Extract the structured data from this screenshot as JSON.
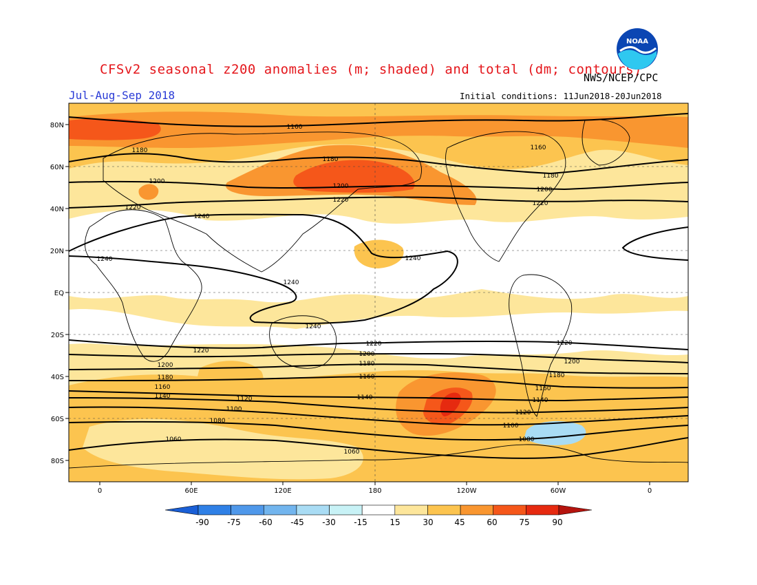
{
  "title": "CFSv2 seasonal z200 anomalies (m; shaded) and total (dm; contours)",
  "organization": "NWS/NCEP/CPC",
  "period": "Jul-Aug-Sep 2018",
  "initial_conditions": "Initial conditions: 11Jun2018-20Jun2018",
  "logo_text": "NOAA",
  "lat_labels": [
    "80N",
    "60N",
    "40N",
    "20N",
    "EQ",
    "20S",
    "40S",
    "60S",
    "80S"
  ],
  "lon_labels": [
    "0",
    "60E",
    "120E",
    "180",
    "120W",
    "60W",
    "0"
  ],
  "colorbar": {
    "ticks": [
      "-90",
      "-75",
      "-60",
      "-45",
      "-30",
      "-15",
      "15",
      "30",
      "45",
      "60",
      "75",
      "90"
    ],
    "colors": [
      "#1a5fd6",
      "#2f80e6",
      "#4f98ea",
      "#72b5ee",
      "#a9dcf4",
      "#c8f2f6",
      "#ffffff",
      "#fde69b",
      "#fcc44f",
      "#f99630",
      "#f5571a",
      "#e62a10",
      "#b5140e"
    ]
  },
  "contour_labels": [
    "1160",
    "1180",
    "1200",
    "1220",
    "1240",
    "1180",
    "1200",
    "1220",
    "1160",
    "1180",
    "1200",
    "1220",
    "1240",
    "1240",
    "1240",
    "1240",
    "1220",
    "1200",
    "1180",
    "1160",
    "1140",
    "1120",
    "1100",
    "1080",
    "1060",
    "1220",
    "1200",
    "1180",
    "1160",
    "1140",
    "1120",
    "1100",
    "1080",
    "1060",
    "1220",
    "1200",
    "1180",
    "1160",
    "1140"
  ]
}
